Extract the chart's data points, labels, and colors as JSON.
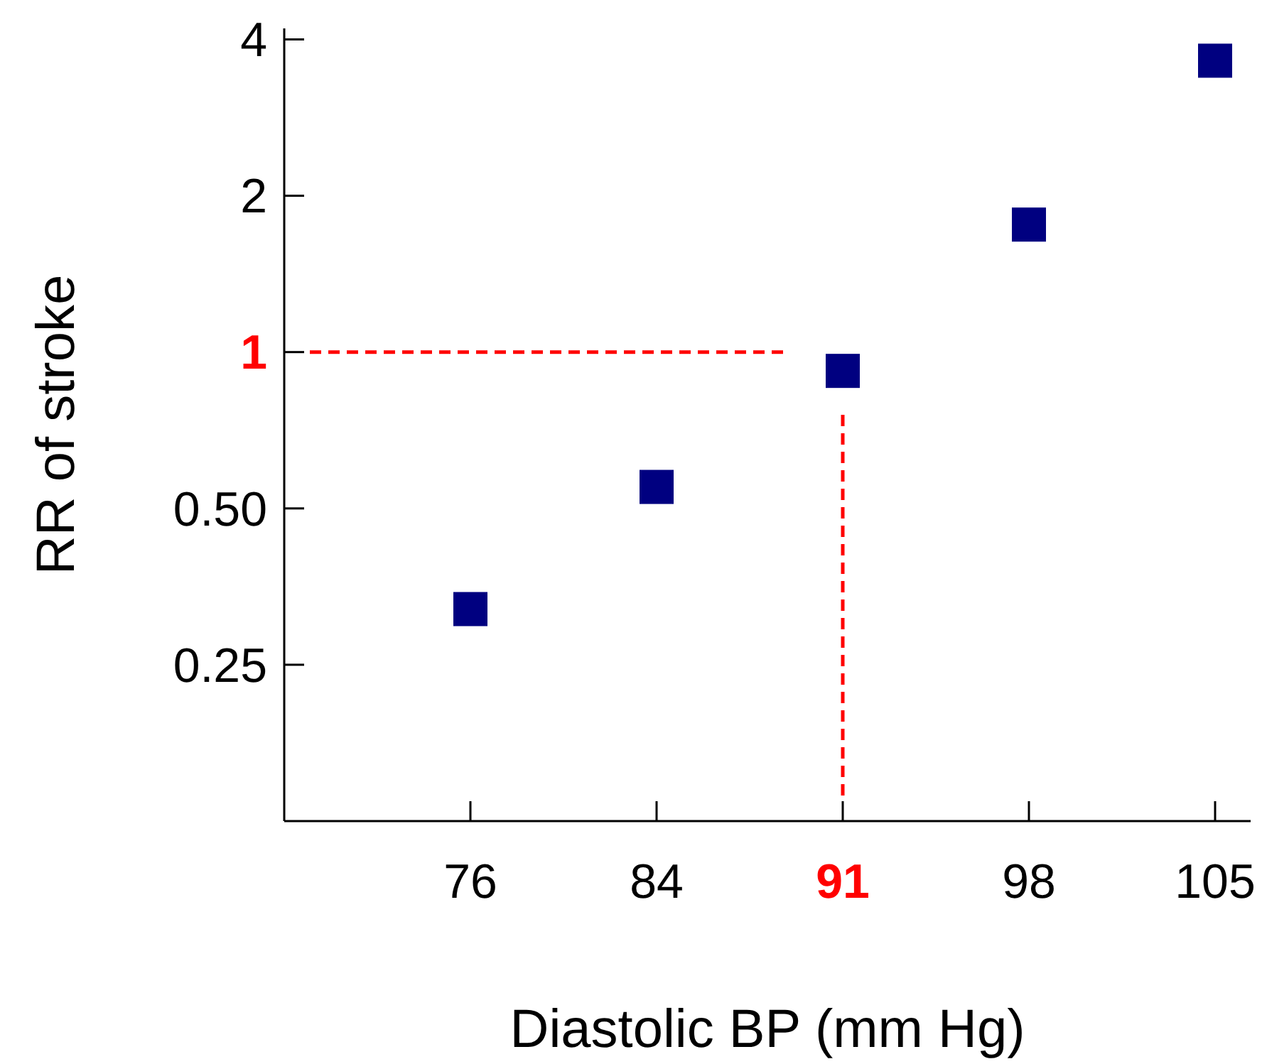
{
  "chart_data": {
    "type": "scatter",
    "xlabel": "Diastolic BP (mm Hg)",
    "ylabel": "RR of stroke",
    "categories": [
      "76",
      "84",
      "91",
      "98",
      "105"
    ],
    "series": [
      {
        "color": "#000080",
        "values": [
          0.32,
          0.55,
          0.92,
          1.76,
          3.64
        ]
      }
    ],
    "log": "y",
    "ylim": [
      0.125,
      4.2
    ],
    "yticks": [
      0.25,
      {
        "value": 0.5,
        "label": "0.50"
      },
      1,
      2,
      4
    ],
    "marker": "square",
    "ref_lines": [
      {
        "axis": "y",
        "value": 1,
        "color": "#ff0000",
        "line_style": "dashed"
      },
      {
        "axis": "x",
        "value": "91",
        "color": "#ff0000",
        "line_style": "dashed"
      }
    ]
  }
}
